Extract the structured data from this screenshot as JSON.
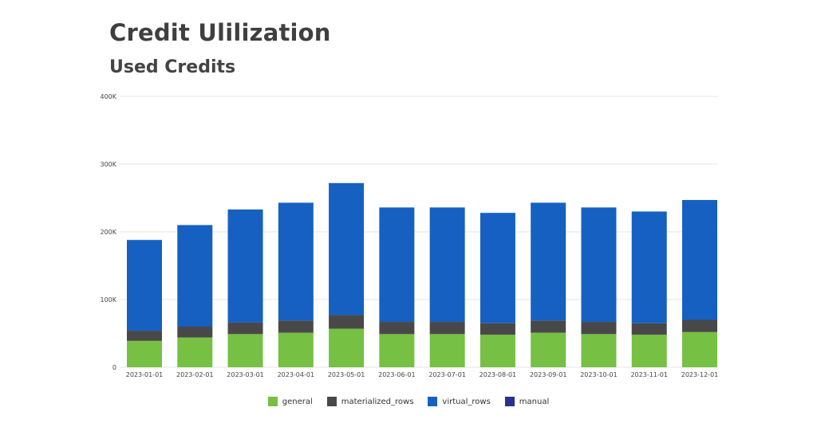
{
  "chart_data": {
    "type": "bar",
    "stacked": true,
    "title": "Credit Ulilization",
    "subtitle": "Used Credits",
    "xlabel": "",
    "ylabel": "",
    "ylim": [
      0,
      400000
    ],
    "yticks": [
      0,
      100000,
      200000,
      300000,
      400000
    ],
    "ytick_labels": [
      "0",
      "100K",
      "200K",
      "300K",
      "400K"
    ],
    "grid": true,
    "legend_position": "bottom",
    "categories": [
      "2023-01-01",
      "2023-02-01",
      "2023-03-01",
      "2023-04-01",
      "2023-05-01",
      "2023-06-01",
      "2023-07-01",
      "2023-08-01",
      "2023-09-01",
      "2023-10-01",
      "2023-11-01",
      "2023-12-01"
    ],
    "series": [
      {
        "name": "general",
        "color": "#76c043",
        "values": [
          39000,
          44000,
          49000,
          51000,
          57000,
          49000,
          49000,
          48000,
          51000,
          49000,
          48000,
          52000
        ]
      },
      {
        "name": "materialized_rows",
        "color": "#484848",
        "values": [
          15000,
          16000,
          17000,
          18000,
          20000,
          18000,
          18000,
          17000,
          18000,
          18000,
          17000,
          18000
        ]
      },
      {
        "name": "virtual_rows",
        "color": "#1660c2",
        "values": [
          134000,
          150000,
          167000,
          174000,
          195000,
          169000,
          169000,
          163000,
          174000,
          169000,
          165000,
          177000
        ]
      },
      {
        "name": "manual",
        "color": "#25328f",
        "values": [
          0,
          0,
          0,
          0,
          0,
          0,
          0,
          0,
          0,
          0,
          0,
          0
        ]
      }
    ]
  }
}
